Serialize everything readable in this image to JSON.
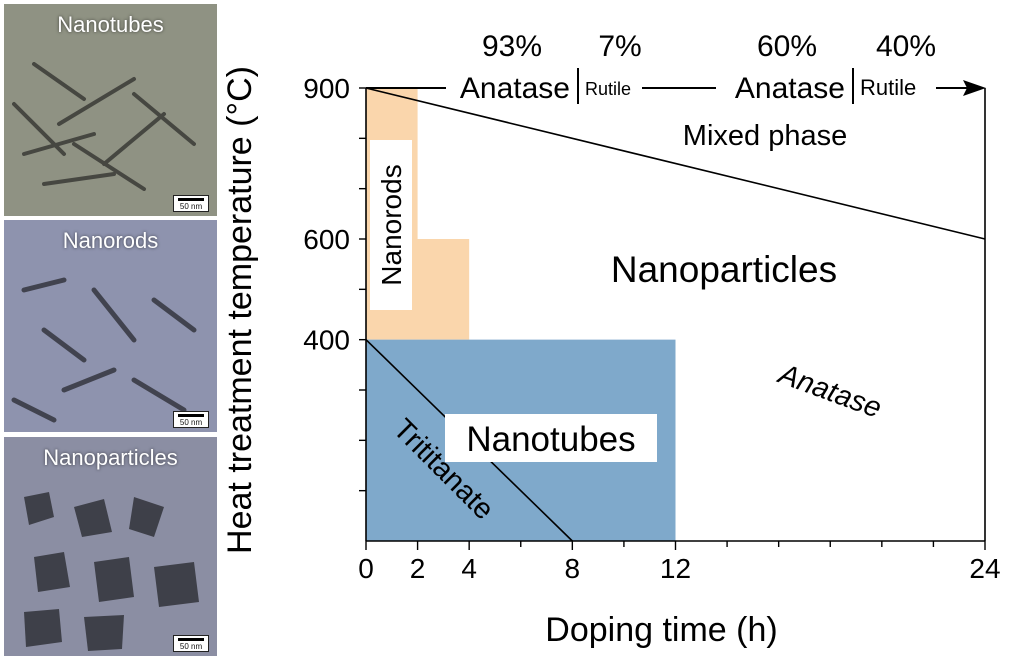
{
  "micrographs": [
    {
      "label": "Nanotubes",
      "scale": "50 nm",
      "tint": "#8e9081"
    },
    {
      "label": "Nanorods",
      "scale": "50 nm",
      "tint": "#8d92ad"
    },
    {
      "label": "Nanoparticles",
      "scale": "50 nm",
      "tint": "#8d90a6"
    }
  ],
  "chart_data": {
    "type": "area",
    "xlabel": "Doping time (h)",
    "ylabel": "Heat treatment temperature (°C)",
    "xlim": [
      0,
      24
    ],
    "ylim": [
      0,
      900
    ],
    "x_tick_labels": [
      0,
      2,
      4,
      8,
      12,
      24
    ],
    "x_minor_ticks": [
      0,
      2,
      4,
      6,
      8,
      10,
      12,
      14,
      16,
      18,
      20,
      22,
      24
    ],
    "y_tick_labels": [
      400,
      600,
      900
    ],
    "y_minor_ticks": [
      100,
      200,
      300,
      400,
      500,
      600,
      700,
      800,
      900
    ],
    "regions": [
      {
        "name": "Nanorods",
        "color": "#fad6ac",
        "polygon": [
          [
            0,
            400
          ],
          [
            0,
            900
          ],
          [
            2,
            900
          ],
          [
            2,
            600
          ],
          [
            4,
            600
          ],
          [
            4,
            400
          ]
        ]
      },
      {
        "name": "Nanotubes",
        "color": "#7fa9cb",
        "polygon": [
          [
            0,
            0
          ],
          [
            0,
            400
          ],
          [
            12,
            400
          ],
          [
            12,
            0
          ]
        ]
      }
    ],
    "boundary_lines": [
      {
        "from": [
          0,
          400
        ],
        "to": [
          8,
          0
        ]
      },
      {
        "from": [
          0,
          900
        ],
        "to": [
          24,
          600
        ]
      }
    ],
    "region_labels": {
      "nanorods": "Nanorods",
      "nanotubes": "Nanotubes",
      "nanoparticles": "Nanoparticles",
      "trititanate": "Trititanate",
      "anatase": "Anatase",
      "mixed_phase": "Mixed phase"
    },
    "phase_composition": [
      {
        "anatase_pct": "93%",
        "rutile_pct": "7%",
        "anatase_label": "Anatase",
        "rutile_label": "Rutile"
      },
      {
        "anatase_pct": "60%",
        "rutile_pct": "40%",
        "anatase_label": "Anatase",
        "rutile_label": "Rutile"
      }
    ]
  }
}
